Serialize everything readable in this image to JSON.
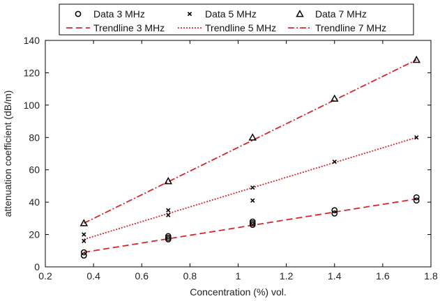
{
  "chart_data": {
    "type": "scatter",
    "xlabel": "Concentration (%) vol.",
    "ylabel": "attenuation coefficient (dB/m)",
    "xlim": [
      0.2,
      1.8
    ],
    "ylim": [
      0,
      140
    ],
    "xticks": [
      0.2,
      0.4,
      0.6,
      0.8,
      1,
      1.2,
      1.4,
      1.6,
      1.8
    ],
    "yticks": [
      0,
      20,
      40,
      60,
      80,
      100,
      120,
      140
    ],
    "grid": false,
    "legend_position": "top",
    "series": [
      {
        "name": "Data 3 MHz",
        "kind": "data",
        "marker": "circle",
        "color": "#000000",
        "points": [
          [
            0.36,
            9
          ],
          [
            0.36,
            7
          ],
          [
            0.71,
            19
          ],
          [
            0.71,
            18
          ],
          [
            0.71,
            17
          ],
          [
            1.06,
            28
          ],
          [
            1.06,
            27
          ],
          [
            1.06,
            26
          ],
          [
            1.4,
            35
          ],
          [
            1.4,
            33
          ],
          [
            1.74,
            43
          ],
          [
            1.74,
            41
          ]
        ]
      },
      {
        "name": "Data 5 MHz",
        "kind": "data",
        "marker": "x",
        "color": "#000000",
        "points": [
          [
            0.36,
            20
          ],
          [
            0.36,
            16
          ],
          [
            0.71,
            35
          ],
          [
            0.71,
            32
          ],
          [
            1.06,
            49
          ],
          [
            1.06,
            41
          ],
          [
            1.4,
            65
          ],
          [
            1.74,
            80
          ]
        ]
      },
      {
        "name": "Data 7 MHz",
        "kind": "data",
        "marker": "triangle",
        "color": "#000000",
        "points": [
          [
            0.36,
            27
          ],
          [
            0.71,
            53
          ],
          [
            1.06,
            80
          ],
          [
            1.4,
            104
          ],
          [
            1.74,
            128
          ]
        ]
      },
      {
        "name": "Trendline 3 MHz",
        "kind": "trend",
        "dash": "dashed",
        "color": "#d62728",
        "points": [
          [
            0.36,
            9
          ],
          [
            1.74,
            42
          ]
        ]
      },
      {
        "name": "Trendline 5 MHz",
        "kind": "trend",
        "dash": "dotted",
        "color": "#d62728",
        "points": [
          [
            0.36,
            17
          ],
          [
            1.74,
            80
          ]
        ]
      },
      {
        "name": "Trendline 7 MHz",
        "kind": "trend",
        "dash": "dashdot",
        "color": "#d62728",
        "points": [
          [
            0.36,
            27
          ],
          [
            1.74,
            128
          ]
        ]
      }
    ]
  }
}
